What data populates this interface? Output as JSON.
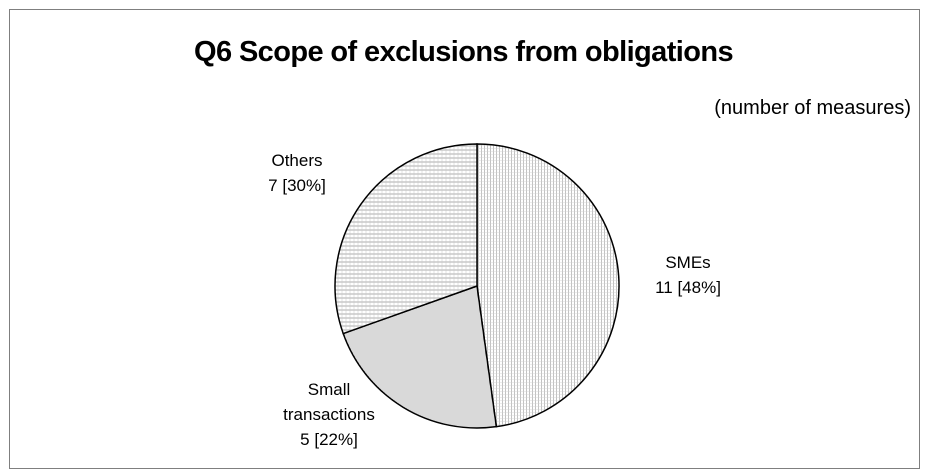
{
  "chart_data": {
    "type": "pie",
    "title": "Q6 Scope of exclusions from obligations",
    "subtitle": "(number of measures)",
    "slices": [
      {
        "label": "SMEs",
        "value": 11,
        "percent_label": "11 [48%]",
        "pattern": "vertical-lines"
      },
      {
        "label": "Small transactions",
        "label_lines": [
          "Small",
          "transactions"
        ],
        "value": 5,
        "percent_label": "5 [22%]",
        "pattern": "dense-vertical"
      },
      {
        "label": "Others",
        "value": 7,
        "percent_label": "7 [30%]",
        "pattern": "grid"
      }
    ],
    "start_angle": "12 o'clock",
    "direction": "clockwise",
    "legend": "none"
  },
  "colors": {
    "frame_border": "#7f7f7f",
    "slice_outline": "#000000",
    "pattern_line": "#9a9a9a"
  }
}
